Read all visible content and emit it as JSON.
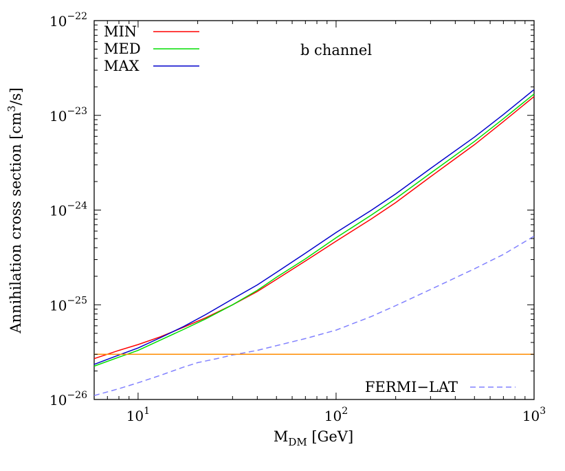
{
  "chart_data": {
    "type": "line",
    "title": "",
    "annotation": "b channel",
    "x_scale": "log",
    "y_scale": "log",
    "xlim": [
      6,
      1000
    ],
    "ylim": [
      1e-26,
      1e-22
    ],
    "xlabel": {
      "main": "M",
      "sub": "DM",
      "unit": "[GeV]"
    },
    "ylabel": {
      "pre": "Annihilation cross section [cm",
      "sup": "3",
      "post": "/s]"
    },
    "x_ticks": [
      {
        "value": 10,
        "base": "10",
        "exp": "1"
      },
      {
        "value": 100,
        "base": "10",
        "exp": "2"
      },
      {
        "value": 1000,
        "base": "10",
        "exp": "3"
      }
    ],
    "y_ticks": [
      {
        "value": 1e-26,
        "base": "10",
        "exp": "−26"
      },
      {
        "value": 1e-25,
        "base": "10",
        "exp": "−25"
      },
      {
        "value": 1e-24,
        "base": "10",
        "exp": "−24"
      },
      {
        "value": 1e-23,
        "base": "10",
        "exp": "−23"
      },
      {
        "value": 1e-22,
        "base": "10",
        "exp": "−22"
      }
    ],
    "grid": false,
    "legend_position": "top-left",
    "legend_secondary_position": "bottom-right",
    "series": [
      {
        "name": "MIN",
        "color": "#ff0000",
        "style": "solid",
        "x": [
          6,
          8,
          10,
          13,
          17,
          22,
          30,
          40,
          50,
          70,
          100,
          150,
          200,
          300,
          500,
          700,
          1000
        ],
        "y": [
          2.7e-26,
          3.3e-26,
          3.8e-26,
          4.6e-26,
          5.8e-26,
          7.3e-26,
          1e-25,
          1.38e-25,
          1.85e-25,
          2.9e-25,
          4.7e-25,
          8e-25,
          1.2e-24,
          2.25e-24,
          4.9e-24,
          8.6e-24,
          1.58e-23
        ]
      },
      {
        "name": "MED",
        "color": "#00dd00",
        "style": "solid",
        "x": [
          6,
          8,
          10,
          13,
          17,
          22,
          30,
          40,
          50,
          70,
          100,
          150,
          200,
          300,
          500,
          700,
          1000
        ],
        "y": [
          2.25e-26,
          2.8e-26,
          3.3e-26,
          4.25e-26,
          5.5e-26,
          7.1e-26,
          1e-25,
          1.42e-25,
          1.95e-25,
          3.05e-25,
          5.1e-25,
          8.8e-25,
          1.32e-24,
          2.45e-24,
          5.3e-24,
          9.2e-24,
          1.68e-23
        ]
      },
      {
        "name": "MAX",
        "color": "#0000cc",
        "style": "solid",
        "x": [
          6,
          8,
          10,
          13,
          17,
          22,
          30,
          40,
          50,
          70,
          100,
          150,
          200,
          300,
          500,
          700,
          1000
        ],
        "y": [
          2.35e-26,
          2.95e-26,
          3.5e-26,
          4.5e-26,
          5.9e-26,
          7.9e-26,
          1.15e-25,
          1.62e-25,
          2.2e-25,
          3.5e-25,
          5.8e-25,
          9.9e-25,
          1.48e-24,
          2.75e-24,
          5.9e-24,
          1.02e-23,
          1.87e-23
        ]
      },
      {
        "name": "FERMI−LAT",
        "color": "#8080ff",
        "style": "dashed",
        "x": [
          6,
          8,
          10,
          13,
          17,
          20,
          25,
          30,
          40,
          50,
          70,
          100,
          150,
          200,
          300,
          500,
          700,
          1000
        ],
        "y": [
          1.1e-26,
          1.3e-26,
          1.5e-26,
          1.8e-26,
          2.2e-26,
          2.45e-26,
          2.7e-26,
          2.95e-26,
          3.3e-26,
          3.7e-26,
          4.4e-26,
          5.4e-26,
          7.5e-26,
          9.8e-26,
          1.45e-25,
          2.4e-25,
          3.4e-25,
          5.3e-25
        ]
      },
      {
        "color": "#ff8c00",
        "style": "solid",
        "x": [
          6,
          1000
        ],
        "y": [
          3e-26,
          3e-26
        ]
      }
    ]
  }
}
